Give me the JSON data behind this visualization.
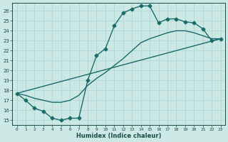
{
  "xlabel": "Humidex (Indice chaleur)",
  "xlim": [
    -0.5,
    23.5
  ],
  "ylim": [
    14.5,
    26.8
  ],
  "xticks": [
    0,
    1,
    2,
    3,
    4,
    5,
    6,
    7,
    8,
    9,
    10,
    11,
    12,
    13,
    14,
    15,
    16,
    17,
    18,
    19,
    20,
    21,
    22,
    23
  ],
  "yticks": [
    15,
    16,
    17,
    18,
    19,
    20,
    21,
    22,
    23,
    24,
    25,
    26
  ],
  "bg_color": "#cce8e4",
  "grid_color": "#b0d8d4",
  "line_color": "#1a6b6b",
  "main_curve_x": [
    0,
    1,
    2,
    3,
    4,
    5,
    6,
    7,
    8,
    9,
    10,
    11,
    12,
    13,
    14,
    15,
    16,
    17,
    18,
    19,
    20,
    21,
    22,
    23
  ],
  "main_curve_y": [
    17.7,
    17.0,
    16.2,
    15.9,
    15.2,
    15.0,
    15.2,
    15.2,
    19.0,
    21.5,
    22.2,
    24.5,
    25.8,
    26.2,
    26.5,
    26.5,
    24.8,
    25.2,
    25.2,
    24.9,
    24.8,
    24.2,
    23.0,
    23.2
  ],
  "second_curve_x": [
    0,
    1,
    2,
    3,
    4,
    5,
    6,
    7,
    8,
    9,
    10,
    11,
    12,
    13,
    14,
    15,
    16,
    17,
    18,
    19,
    20,
    21,
    22,
    23
  ],
  "second_curve_y": [
    17.7,
    17.5,
    17.2,
    17.0,
    16.8,
    16.8,
    17.0,
    17.5,
    18.5,
    19.2,
    19.8,
    20.5,
    21.2,
    22.0,
    22.8,
    23.2,
    23.5,
    23.8,
    24.0,
    24.0,
    23.8,
    23.5,
    23.2,
    23.2
  ],
  "trend_x": [
    0,
    23
  ],
  "trend_y": [
    17.7,
    23.2
  ],
  "marker": "D",
  "markersize": 2.5,
  "linewidth": 1.0
}
